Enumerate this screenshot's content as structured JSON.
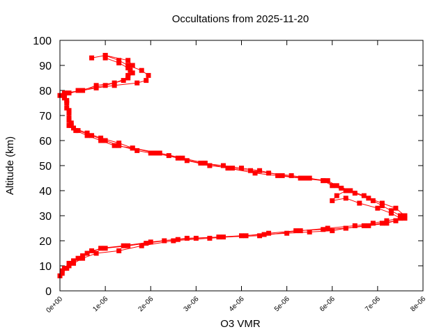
{
  "chart_data": {
    "type": "scatter",
    "title": "Occultations from 2025-11-20",
    "xlabel": "O3 VMR",
    "ylabel": "Altitude (km)",
    "xlim": [
      0,
      8e-06
    ],
    "ylim": [
      0,
      100
    ],
    "xticks": [
      "0e+00",
      "1e-06",
      "2e-06",
      "3e-06",
      "4e-06",
      "5e-06",
      "6e-06",
      "7e-06",
      "8e-06"
    ],
    "yticks": [
      "0",
      "10",
      "20",
      "30",
      "40",
      "50",
      "60",
      "70",
      "80",
      "90",
      "100"
    ],
    "grid": false,
    "marker": "square",
    "color": "#ff0000",
    "series": [
      {
        "x": [
          7e-07,
          1e-06,
          1.3e-06,
          1.5e-06,
          1.8e-06,
          1.95e-06,
          1.9e-06,
          1.7e-06,
          1.2e-06,
          8e-07,
          5e-07,
          1e-07,
          0.0,
          1.5e-07,
          2e-07,
          2e-07,
          2.5e-07,
          4e-07,
          7e-07,
          1e-06,
          1.3e-06,
          1.7e-06,
          2e-06,
          2.4e-06,
          2.8e-06,
          3.3e-06,
          3.8e-06,
          4.2e-06,
          4.6e-06,
          5.1e-06,
          5.5e-06,
          5.8e-06,
          6.1e-06,
          6.4e-06,
          6.7e-06,
          6.9e-06,
          7.1e-06,
          7.3e-06,
          7.5e-06,
          7.6e-06,
          7.4e-06,
          7.1e-06,
          6.7e-06,
          6.3e-06,
          6e-06,
          5.5e-06,
          5e-06,
          4.5e-06,
          4e-06,
          3.5e-06,
          3e-06,
          2.6e-06,
          2.3e-06,
          1.9e-06,
          1.5e-06,
          1e-06,
          7e-07,
          5e-07,
          3e-07,
          2e-07,
          5e-08,
          0.0
        ],
        "y": [
          93,
          94,
          92,
          90,
          88,
          86,
          84,
          83,
          82,
          81,
          80,
          79,
          78,
          76,
          72,
          68,
          66,
          64,
          62,
          60,
          58,
          56,
          55,
          54,
          52,
          50,
          49,
          48,
          47,
          46,
          45,
          44,
          42,
          40,
          38,
          36,
          34,
          32,
          30,
          29,
          28,
          27,
          26,
          25,
          24,
          23.5,
          23,
          22.5,
          22,
          21.5,
          21,
          20.5,
          20,
          19,
          18,
          17,
          16,
          14,
          12,
          10,
          8,
          6
        ]
      },
      {
        "x": [
          1e-06,
          1.5e-06,
          1.6e-06,
          1.55e-06,
          1.5e-06,
          1.4e-06,
          1e-06,
          4e-07,
          1e-07,
          1.5e-07,
          2e-07,
          2.5e-07,
          3e-07,
          6e-07,
          9e-07,
          1.3e-06,
          1.6e-06,
          2.2e-06,
          2.7e-06,
          3.2e-06,
          3.7e-06,
          4.3e-06,
          4.8e-06,
          5.3e-06,
          5.8e-06,
          6e-06,
          6.3e-06,
          6.1e-06,
          6e-06,
          6.3e-06,
          6.6e-06,
          7e-06,
          7.3e-06,
          7.5e-06,
          7.4e-06,
          7.2e-06,
          6.8e-06,
          6.3e-06,
          5.8e-06,
          5.2e-06,
          4.6e-06,
          4.1e-06,
          3.3e-06,
          2.5e-06,
          1.8e-06,
          1.3e-06,
          8e-07,
          5e-07,
          3e-07,
          1.5e-07,
          5e-08
        ],
        "y": [
          94,
          92,
          90,
          88,
          86,
          84,
          82,
          80,
          78,
          75,
          71,
          67,
          65,
          63,
          61,
          59,
          57,
          55,
          53,
          51,
          49,
          47,
          46,
          45,
          44,
          42,
          40,
          38,
          36,
          37,
          35,
          33,
          31,
          29,
          28,
          27,
          26,
          25,
          24.5,
          24,
          23,
          22,
          21,
          20,
          18,
          16,
          15,
          13,
          11,
          9,
          7
        ]
      },
      {
        "x": [
          1e-06,
          1.3e-06,
          1.5e-06,
          1.6e-06,
          1.5e-06,
          1.2e-06,
          8e-07,
          5e-07,
          2e-07,
          1e-07,
          1.5e-07,
          2e-07,
          2e-07,
          3.5e-07,
          6e-07,
          9e-07,
          1.2e-06,
          1.6e-06,
          2.1e-06,
          2.6e-06,
          3.1e-06,
          3.6e-06,
          4e-06,
          4.4e-06,
          4.9e-06,
          5.4e-06,
          5.9e-06,
          6.2e-06,
          6.5e-06,
          6.8e-06,
          7.1e-06,
          7.4e-06,
          7.6e-06,
          7.5e-06,
          7.2e-06,
          6.9e-06,
          6.5e-06,
          5.9e-06,
          5.3e-06,
          4.4e-06,
          3.6e-06,
          2.8e-06,
          2e-06,
          1.4e-06,
          9e-07,
          6e-07,
          4e-07,
          2e-07,
          1e-07
        ],
        "y": [
          93,
          91,
          89,
          87,
          85,
          83,
          82,
          80,
          79,
          77,
          73,
          69,
          66,
          64,
          62,
          60,
          58,
          57,
          55,
          53,
          51,
          50,
          49,
          48,
          46,
          45,
          44,
          41,
          39,
          37,
          35,
          33,
          30,
          29,
          28,
          27,
          26,
          25,
          24,
          22,
          21.5,
          21,
          19.5,
          18,
          17,
          15,
          13,
          11,
          9
        ]
      }
    ]
  }
}
